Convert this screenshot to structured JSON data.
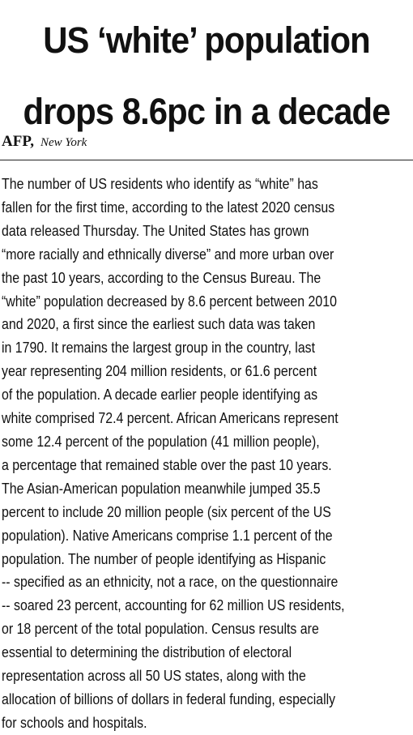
{
  "headline": {
    "line1": "US ‘white’ population",
    "line2": "drops 8.6pc in a decade"
  },
  "byline": {
    "agency": "AFP,",
    "location": "New York"
  },
  "body": {
    "lines": [
      "The number of US residents who identify as “white” has",
      "fallen for the first time, according to the latest 2020 census",
      "data released Thursday. The United States has grown",
      "“more racially and ethnically diverse” and more urban over",
      "the past 10 years, according to the Census Bureau.  The",
      "“white” population decreased by 8.6 percent between 2010",
      "and 2020, a first since the earliest such data was taken",
      "in 1790. It remains the largest group in the country, last",
      "year representing 204 million residents, or 61.6 percent",
      "of the population. A decade earlier people identifying as",
      "white comprised 72.4 percent. African Americans represent",
      "some 12.4 percent of the population (41 million people),",
      "a percentage that remained stable over the past 10 years.",
      "The Asian-American population meanwhile jumped 35.5",
      "percent to include 20 million people (six percent of the US",
      "population).  Native Americans comprise 1.1 percent of the",
      "population. The number of people identifying as Hispanic",
      "-- specified as an ethnicity, not a race, on the questionnaire",
      "-- soared 23 percent, accounting for 62 million US residents,",
      "or 18 percent of the total population. Census results are",
      "essential to determining the distribution of electoral",
      "representation across all 50 US states, along with the",
      "allocation of billions of dollars in federal funding, especially",
      "for schools and hospitals."
    ]
  }
}
